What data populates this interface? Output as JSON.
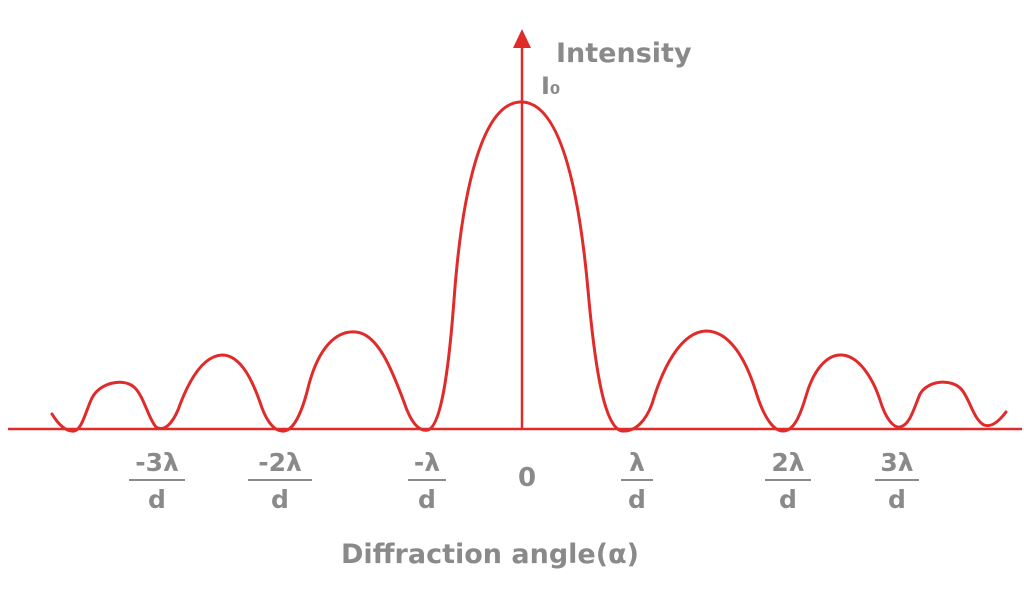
{
  "y_axis": {
    "title": "Intensity",
    "peak_label": "I₀"
  },
  "x_axis": {
    "title": "Diffraction angle(α)",
    "origin_label": "0",
    "ticks": [
      {
        "num": "-3λ",
        "den": "d",
        "pos": -3
      },
      {
        "num": "-2λ",
        "den": "d",
        "pos": -2
      },
      {
        "num": "-λ",
        "den": "d",
        "pos": -1
      },
      {
        "num": "λ",
        "den": "d",
        "pos": 1
      },
      {
        "num": "2λ",
        "den": "d",
        "pos": 2
      },
      {
        "num": "3λ",
        "den": "d",
        "pos": 3
      }
    ]
  },
  "colors": {
    "curve": "#e02b2b",
    "axis": "#e02b2b",
    "text": "#8a8a8a"
  }
}
